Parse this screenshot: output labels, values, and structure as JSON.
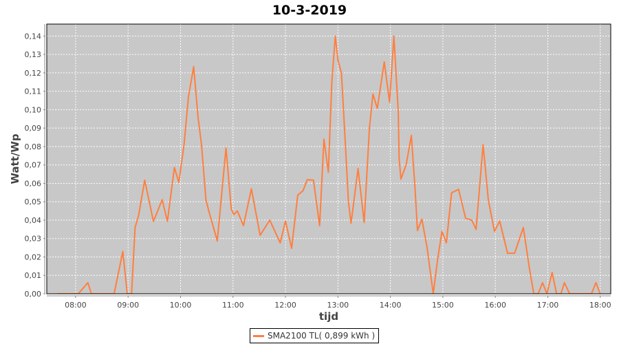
{
  "chart_data": {
    "type": "line",
    "title": "10-3-2019",
    "xlabel": "tijd",
    "ylabel": "Watt/Wp",
    "xlim": [
      "07:27",
      "18:12"
    ],
    "ylim": [
      0,
      0.1465
    ],
    "x_ticks": [
      "08:00",
      "09:00",
      "10:00",
      "11:00",
      "12:00",
      "13:00",
      "14:00",
      "15:00",
      "16:00",
      "17:00",
      "18:00"
    ],
    "y_ticks": [
      "0,00",
      "0,01",
      "0,02",
      "0,03",
      "0,04",
      "0,05",
      "0,06",
      "0,07",
      "0,08",
      "0,09",
      "0,10",
      "0,11",
      "0,12",
      "0,13",
      "0,14"
    ],
    "grid": true,
    "legend_position": "bottom",
    "background_color": "#c8c8c8",
    "series": [
      {
        "name": "SMA2100 TL( 0,899 kWh )",
        "color": "#ff7f3f",
        "points": [
          [
            "07:39",
            0
          ],
          [
            "08:03",
            0
          ],
          [
            "08:14",
            0.006
          ],
          [
            "08:18",
            0
          ],
          [
            "08:24",
            0
          ],
          [
            "08:44",
            0
          ],
          [
            "08:54",
            0.023
          ],
          [
            "08:59",
            0
          ],
          [
            "09:04",
            0
          ],
          [
            "09:08",
            0.036
          ],
          [
            "09:12",
            0.0425
          ],
          [
            "09:19",
            0.0617
          ],
          [
            "09:29",
            0.0393
          ],
          [
            "09:39",
            0.0511
          ],
          [
            "09:45",
            0.0393
          ],
          [
            "09:53",
            0.0686
          ],
          [
            "09:58",
            0.0605
          ],
          [
            "10:04",
            0.081
          ],
          [
            "10:09",
            0.107
          ],
          [
            "10:15",
            0.1234
          ],
          [
            "10:20",
            0.096
          ],
          [
            "10:24",
            0.081
          ],
          [
            "10:29",
            0.0511
          ],
          [
            "10:32",
            0.0455
          ],
          [
            "10:42",
            0.0287
          ],
          [
            "10:52",
            0.0792
          ],
          [
            "10:58",
            0.046
          ],
          [
            "11:01",
            0.043
          ],
          [
            "11:05",
            0.045
          ],
          [
            "11:12",
            0.037
          ],
          [
            "11:21",
            0.057
          ],
          [
            "11:31",
            0.0318
          ],
          [
            "11:42",
            0.04
          ],
          [
            "11:54",
            0.0277
          ],
          [
            "12:00",
            0.0395
          ],
          [
            "12:07",
            0.0247
          ],
          [
            "12:14",
            0.0536
          ],
          [
            "12:20",
            0.056
          ],
          [
            "12:25",
            0.062
          ],
          [
            "12:32",
            0.0617
          ],
          [
            "12:39",
            0.037
          ],
          [
            "12:44",
            0.084
          ],
          [
            "12:49",
            0.066
          ],
          [
            "12:53",
            0.1147
          ],
          [
            "12:57",
            0.14
          ],
          [
            "13:00",
            0.127
          ],
          [
            "13:04",
            0.12
          ],
          [
            "13:08",
            0.086
          ],
          [
            "13:12",
            0.05
          ],
          [
            "13:15",
            0.0383
          ],
          [
            "13:23",
            0.068
          ],
          [
            "13:30",
            0.0387
          ],
          [
            "13:36",
            0.0898
          ],
          [
            "13:40",
            0.1085
          ],
          [
            "13:45",
            0.1007
          ],
          [
            "13:53",
            0.126
          ],
          [
            "13:59",
            0.104
          ],
          [
            "14:04",
            0.14
          ],
          [
            "14:09",
            0.0985
          ],
          [
            "14:10",
            0.0736
          ],
          [
            "14:12",
            0.0623
          ],
          [
            "14:18",
            0.07
          ],
          [
            "14:24",
            0.086
          ],
          [
            "14:28",
            0.0586
          ],
          [
            "14:31",
            0.0343
          ],
          [
            "14:36",
            0.0405
          ],
          [
            "14:42",
            0.025
          ],
          [
            "14:49",
            0
          ],
          [
            "14:54",
            0.0187
          ],
          [
            "14:59",
            0.0339
          ],
          [
            "15:04",
            0.0277
          ],
          [
            "15:10",
            0.0549
          ],
          [
            "15:18",
            0.0567
          ],
          [
            "15:26",
            0.041
          ],
          [
            "15:33",
            0.04
          ],
          [
            "15:38",
            0.035
          ],
          [
            "15:46",
            0.081
          ],
          [
            "15:52",
            0.051
          ],
          [
            "15:59",
            0.0339
          ],
          [
            "16:05",
            0.0395
          ],
          [
            "16:14",
            0.022
          ],
          [
            "16:22",
            0.022
          ],
          [
            "16:32",
            0.036
          ],
          [
            "16:39",
            0.0137
          ],
          [
            "16:44",
            0
          ],
          [
            "16:49",
            0
          ],
          [
            "16:54",
            0.006
          ],
          [
            "16:59",
            0
          ],
          [
            "17:05",
            0.0116
          ],
          [
            "17:10",
            0
          ],
          [
            "17:15",
            0
          ],
          [
            "17:19",
            0.006
          ],
          [
            "17:25",
            0
          ],
          [
            "17:50",
            0
          ],
          [
            "17:55",
            0.006
          ],
          [
            "18:00",
            0
          ]
        ]
      }
    ]
  }
}
